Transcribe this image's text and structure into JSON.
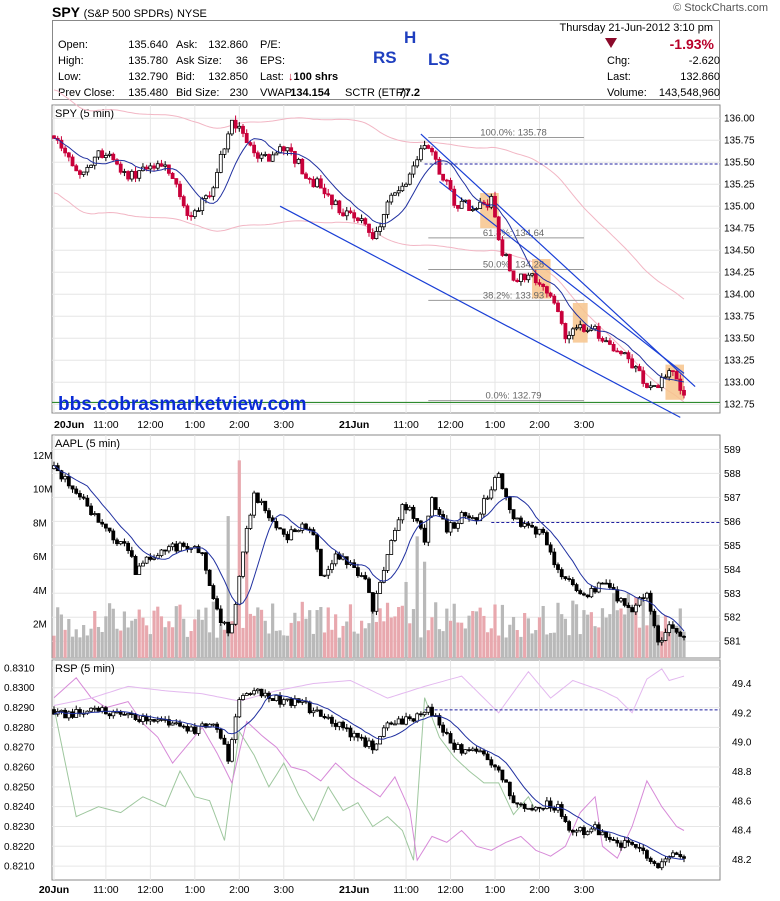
{
  "header": {
    "symbol": "SPY",
    "name": "(S&P 500 SPDRs)",
    "exchange": "NYSE",
    "date": "Thursday  21-Jun-2012  3:10 pm",
    "site": "© StockCharts.com",
    "change_pct": "-1.93%",
    "quote": [
      {
        "label": "Open:",
        "value": "135.640"
      },
      {
        "label": "High:",
        "value": "135.780"
      },
      {
        "label": "Low:",
        "value": "132.790"
      },
      {
        "label": "Prev Close:",
        "value": "135.480"
      },
      {
        "label": "Ask:",
        "value": "132.860"
      },
      {
        "label": "Ask Size:",
        "value": "36"
      },
      {
        "label": "Bid:",
        "value": "132.850"
      },
      {
        "label": "Bid Size:",
        "value": "230"
      },
      {
        "label": "P/E:",
        "value": ""
      },
      {
        "label": "EPS:",
        "value": ""
      },
      {
        "label": "Last:",
        "value": "100 shrs"
      },
      {
        "label": "VWAP:",
        "value": "134.154"
      },
      {
        "label": "SCTR (ETF):",
        "value": "77.2"
      },
      {
        "label": "Chg:",
        "value": "-2.620"
      },
      {
        "label": "Last:",
        "value": "132.860"
      },
      {
        "label": "Volume:",
        "value": "143,548,960"
      }
    ],
    "pattern_letters": {
      "rs": "RS",
      "h": "H",
      "ls": "LS"
    }
  },
  "chart_data": [
    {
      "type": "candlestick",
      "title": "SPY (5 min)",
      "watermark": "bbs.cobrasmarketview.com",
      "ylim": [
        132.65,
        136.15
      ],
      "yticks": [
        136.0,
        135.75,
        135.5,
        135.25,
        135.0,
        134.75,
        134.5,
        134.25,
        134.0,
        133.75,
        133.5,
        133.25,
        133.0,
        132.75
      ],
      "ytick_labels": [
        "136.00",
        "135.75",
        "135.50",
        "135.25",
        "135.00",
        "134.75",
        "134.50",
        "134.25",
        "134.00",
        "133.75",
        "133.50",
        "133.25",
        "133.00",
        "132.75"
      ],
      "x_labels": [
        "20Jun",
        "11:00",
        "12:00",
        "1:00",
        "2:00",
        "3:00",
        "21Jun",
        "11:00",
        "12:00",
        "1:00",
        "2:00",
        "3:00"
      ],
      "fib_levels": [
        {
          "label": "100.0%: 135.78",
          "value": 135.78
        },
        {
          "label": "61.8%: 134.64",
          "value": 134.64
        },
        {
          "label": "50.0%: 134.28",
          "value": 134.28
        },
        {
          "label": "38.2%: 133.93",
          "value": 133.93
        },
        {
          "label": "0.0%: 132.79",
          "value": 132.79
        }
      ],
      "prev_close": 135.48,
      "anchors": [
        [
          0,
          135.8
        ],
        [
          4,
          135.5
        ],
        [
          8,
          135.35
        ],
        [
          12,
          135.6
        ],
        [
          16,
          135.55
        ],
        [
          20,
          135.3
        ],
        [
          24,
          135.45
        ],
        [
          28,
          135.5
        ],
        [
          32,
          135.35
        ],
        [
          36,
          134.9
        ],
        [
          38,
          134.9
        ],
        [
          40,
          135.1
        ],
        [
          43,
          135.2
        ],
        [
          46,
          135.7
        ],
        [
          48,
          135.95
        ],
        [
          50,
          135.85
        ],
        [
          54,
          135.6
        ],
        [
          58,
          135.55
        ],
        [
          62,
          135.65
        ],
        [
          66,
          135.5
        ],
        [
          68,
          135.3
        ],
        [
          72,
          135.25
        ],
        [
          76,
          135.0
        ],
        [
          80,
          134.9
        ],
        [
          84,
          134.8
        ],
        [
          86,
          134.65
        ],
        [
          90,
          135.0
        ],
        [
          94,
          135.25
        ],
        [
          98,
          135.5
        ],
        [
          100,
          135.75
        ],
        [
          102,
          135.6
        ],
        [
          104,
          135.4
        ],
        [
          106,
          135.3
        ],
        [
          108,
          135.05
        ],
        [
          112,
          135.0
        ],
        [
          116,
          135.0
        ],
        [
          118,
          135.1
        ],
        [
          120,
          134.6
        ],
        [
          124,
          134.2
        ],
        [
          128,
          134.2
        ],
        [
          132,
          134.1
        ],
        [
          136,
          133.85
        ],
        [
          138,
          133.55
        ],
        [
          142,
          133.6
        ],
        [
          145,
          133.65
        ],
        [
          148,
          133.5
        ],
        [
          152,
          133.35
        ],
        [
          156,
          133.2
        ],
        [
          160,
          132.95
        ],
        [
          163,
          133.0
        ],
        [
          166,
          133.15
        ],
        [
          170,
          132.9
        ]
      ],
      "volatility": 0.09,
      "sma": {
        "color": "#2030a0"
      },
      "boxes": [
        [
          115,
          120,
          134.75,
          135.15
        ],
        [
          129,
          134,
          133.95,
          134.4
        ],
        [
          140,
          144,
          133.45,
          133.9
        ],
        [
          165,
          170,
          132.8,
          133.2
        ]
      ]
    },
    {
      "type": "candlestick",
      "title": "AAPL (5 min)",
      "ylim": [
        580.3,
        589.6
      ],
      "yticks": [
        589,
        588,
        587,
        586,
        585,
        584,
        583,
        582,
        581
      ],
      "ytick_labels": [
        "589",
        "588",
        "587",
        "586",
        "585",
        "584",
        "583",
        "582",
        "581"
      ],
      "vol_ticks": [
        "12M",
        "10M",
        "8M",
        "6M",
        "4M",
        "2M"
      ],
      "vol_tick_values": [
        12,
        10,
        8,
        6,
        4,
        2
      ],
      "prev_close": 585.95,
      "anchors": [
        [
          0,
          588.2
        ],
        [
          4,
          587.5
        ],
        [
          8,
          586.8
        ],
        [
          12,
          586.0
        ],
        [
          16,
          585.3
        ],
        [
          20,
          584.8
        ],
        [
          22,
          583.9
        ],
        [
          26,
          584.5
        ],
        [
          30,
          584.9
        ],
        [
          34,
          584.9
        ],
        [
          38,
          585.1
        ],
        [
          40,
          584.6
        ],
        [
          44,
          582.3
        ],
        [
          47,
          581.3
        ],
        [
          49,
          582.5
        ],
        [
          52,
          585.7
        ],
        [
          54,
          587.2
        ],
        [
          58,
          586.2
        ],
        [
          62,
          585.3
        ],
        [
          66,
          585.8
        ],
        [
          70,
          585.6
        ],
        [
          72,
          583.7
        ],
        [
          76,
          584.5
        ],
        [
          80,
          584.2
        ],
        [
          84,
          583.6
        ],
        [
          86,
          582.4
        ],
        [
          90,
          584.5
        ],
        [
          94,
          586.8
        ],
        [
          96,
          586.5
        ],
        [
          100,
          585.3
        ],
        [
          102,
          586.9
        ],
        [
          106,
          585.6
        ],
        [
          110,
          586.2
        ],
        [
          114,
          586.1
        ],
        [
          116,
          586.8
        ],
        [
          118,
          587.3
        ],
        [
          120,
          588.0
        ],
        [
          124,
          586.2
        ],
        [
          128,
          585.7
        ],
        [
          132,
          585.5
        ],
        [
          136,
          584.0
        ],
        [
          140,
          583.3
        ],
        [
          144,
          582.9
        ],
        [
          148,
          583.5
        ],
        [
          152,
          582.8
        ],
        [
          156,
          582.4
        ],
        [
          160,
          582.9
        ],
        [
          163,
          581.0
        ],
        [
          166,
          581.5
        ],
        [
          170,
          581.3
        ]
      ],
      "volatility": 0.28,
      "volume_scale": 13.2,
      "sma": {
        "color": "#2030a0"
      }
    },
    {
      "type": "candlestick",
      "title": "RSP (5 min)",
      "ylim": [
        0.8203,
        0.8314
      ],
      "yticks": [
        0.831,
        0.83,
        0.829,
        0.828,
        0.827,
        0.826,
        0.825,
        0.824,
        0.823,
        0.822,
        0.821
      ],
      "ytick_labels": [
        "0.8310",
        "0.8300",
        "0.8290",
        "0.8280",
        "0.8270",
        "0.8260",
        "0.8250",
        "0.8240",
        "0.8230",
        "0.8220",
        "0.8210"
      ],
      "right_ylim": [
        48.06,
        49.56
      ],
      "right_ticks": [
        49.4,
        49.2,
        49.0,
        48.8,
        48.6,
        48.4,
        48.2
      ],
      "right_tick_labels": [
        "49.4",
        "49.2",
        "49.0",
        "48.8",
        "48.6",
        "48.4",
        "48.2"
      ],
      "prev_close": 49.22,
      "anchors": [
        [
          0,
          0.8289
        ],
        [
          4,
          0.8286
        ],
        [
          8,
          0.8288
        ],
        [
          12,
          0.829
        ],
        [
          16,
          0.8287
        ],
        [
          20,
          0.8285
        ],
        [
          24,
          0.8285
        ],
        [
          30,
          0.8283
        ],
        [
          34,
          0.8281
        ],
        [
          38,
          0.8279
        ],
        [
          40,
          0.8284
        ],
        [
          44,
          0.8278
        ],
        [
          47,
          0.8265
        ],
        [
          50,
          0.8295
        ],
        [
          54,
          0.83
        ],
        [
          58,
          0.8296
        ],
        [
          62,
          0.8293
        ],
        [
          66,
          0.8293
        ],
        [
          70,
          0.8288
        ],
        [
          74,
          0.8283
        ],
        [
          78,
          0.828
        ],
        [
          82,
          0.8275
        ],
        [
          86,
          0.827
        ],
        [
          90,
          0.828
        ],
        [
          94,
          0.8284
        ],
        [
          97,
          0.8283
        ],
        [
          100,
          0.829
        ],
        [
          104,
          0.8282
        ],
        [
          108,
          0.827
        ],
        [
          112,
          0.8268
        ],
        [
          116,
          0.8265
        ],
        [
          118,
          0.8262
        ],
        [
          120,
          0.8257
        ],
        [
          124,
          0.8244
        ],
        [
          128,
          0.8237
        ],
        [
          132,
          0.8241
        ],
        [
          136,
          0.824
        ],
        [
          140,
          0.8226
        ],
        [
          144,
          0.8229
        ],
        [
          148,
          0.8228
        ],
        [
          152,
          0.8222
        ],
        [
          156,
          0.8219
        ],
        [
          160,
          0.8216
        ],
        [
          163,
          0.8211
        ],
        [
          166,
          0.8216
        ],
        [
          170,
          0.8213
        ]
      ],
      "volatility": 0.00035,
      "sma": {
        "color": "#2030a0"
      },
      "green_anchors": [
        [
          0,
          0.829
        ],
        [
          6,
          0.8235
        ],
        [
          12,
          0.824
        ],
        [
          18,
          0.8237
        ],
        [
          24,
          0.8245
        ],
        [
          30,
          0.824
        ],
        [
          34,
          0.8258
        ],
        [
          38,
          0.8245
        ],
        [
          42,
          0.8243
        ],
        [
          46,
          0.8223
        ],
        [
          50,
          0.8278
        ],
        [
          54,
          0.8266
        ],
        [
          58,
          0.825
        ],
        [
          62,
          0.8262
        ],
        [
          66,
          0.8246
        ],
        [
          70,
          0.8233
        ],
        [
          74,
          0.825
        ],
        [
          78,
          0.8238
        ],
        [
          82,
          0.8242
        ],
        [
          86,
          0.823
        ],
        [
          90,
          0.8235
        ],
        [
          94,
          0.8228
        ],
        [
          97,
          0.8213
        ],
        [
          100,
          0.8295
        ],
        [
          104,
          0.8275
        ],
        [
          108,
          0.8265
        ],
        [
          112,
          0.8258
        ],
        [
          116,
          0.8252
        ],
        [
          120,
          0.8252
        ],
        [
          124,
          0.8236
        ],
        [
          128,
          0.8245
        ],
        [
          130,
          0.8238
        ]
      ],
      "violet_anchors": [
        [
          0,
          0.8295
        ],
        [
          6,
          0.8305
        ],
        [
          10,
          0.8295
        ],
        [
          14,
          0.829
        ],
        [
          20,
          0.8293
        ],
        [
          24,
          0.8282
        ],
        [
          28,
          0.8275
        ],
        [
          32,
          0.8262
        ],
        [
          36,
          0.8271
        ],
        [
          40,
          0.828
        ],
        [
          44,
          0.8267
        ],
        [
          48,
          0.8252
        ],
        [
          52,
          0.8283
        ],
        [
          56,
          0.8276
        ],
        [
          60,
          0.827
        ],
        [
          64,
          0.826
        ],
        [
          68,
          0.8258
        ],
        [
          72,
          0.8253
        ],
        [
          76,
          0.8262
        ],
        [
          80,
          0.8255
        ],
        [
          84,
          0.825
        ],
        [
          88,
          0.8245
        ],
        [
          92,
          0.8255
        ],
        [
          96,
          0.8238
        ],
        [
          98,
          0.8213
        ],
        [
          102,
          0.8225
        ],
        [
          106,
          0.8222
        ],
        [
          110,
          0.8228
        ],
        [
          114,
          0.822
        ],
        [
          118,
          0.8218
        ],
        [
          122,
          0.8222
        ],
        [
          126,
          0.8225
        ],
        [
          130,
          0.8218
        ],
        [
          134,
          0.8215
        ],
        [
          138,
          0.822
        ],
        [
          142,
          0.8237
        ],
        [
          146,
          0.8245
        ],
        [
          148,
          0.822
        ],
        [
          152,
          0.8214
        ],
        [
          156,
          0.823
        ],
        [
          160,
          0.8253
        ],
        [
          164,
          0.824
        ],
        [
          168,
          0.823
        ],
        [
          170,
          0.8228
        ]
      ],
      "pink_anchors": [
        [
          0,
          49.25
        ],
        [
          10,
          49.3
        ],
        [
          20,
          49.38
        ],
        [
          30,
          49.35
        ],
        [
          40,
          49.33
        ],
        [
          50,
          49.28
        ],
        [
          60,
          49.35
        ],
        [
          70,
          49.4
        ],
        [
          80,
          49.42
        ],
        [
          90,
          49.3
        ],
        [
          100,
          49.38
        ],
        [
          110,
          49.45
        ],
        [
          120,
          49.2
        ],
        [
          128,
          49.48
        ],
        [
          134,
          49.3
        ],
        [
          140,
          49.42
        ],
        [
          148,
          49.35
        ],
        [
          152,
          49.3
        ],
        [
          156,
          49.2
        ],
        [
          160,
          49.43
        ],
        [
          164,
          49.5
        ],
        [
          166,
          49.42
        ],
        [
          170,
          49.45
        ]
      ]
    }
  ],
  "chart_x_labels_bottom": [
    "20Jun",
    "11:00",
    "12:00",
    "1:00",
    "2:00",
    "3:00",
    "21Jun",
    "11:00",
    "12:00",
    "1:00",
    "2:00",
    "3:00"
  ]
}
